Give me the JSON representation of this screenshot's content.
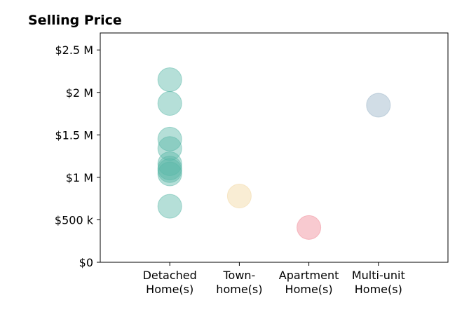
{
  "chart_data": {
    "type": "scatter",
    "title": "Selling Price",
    "xlabel": "",
    "ylabel": "",
    "categories": [
      [
        "Detached",
        "Home(s)"
      ],
      [
        "Town-",
        "home(s)"
      ],
      [
        "Apartment",
        "Home(s)"
      ],
      [
        "Multi-unit",
        "Home(s)"
      ]
    ],
    "ylim": [
      0,
      2700000
    ],
    "yticks": [
      {
        "value": 0,
        "label": "$0"
      },
      {
        "value": 500000,
        "label": "$500 k"
      },
      {
        "value": 1000000,
        "label": "$1 M"
      },
      {
        "value": 1500000,
        "label": "$1.5 M"
      },
      {
        "value": 2000000,
        "label": "$2 M"
      },
      {
        "value": 2500000,
        "label": "$2.5 M"
      }
    ],
    "grid": false,
    "series": [
      {
        "category_index": 0,
        "color": "#5ab8a8",
        "values": [
          2150000,
          1870000,
          1450000,
          1340000,
          1160000,
          1110000,
          1080000,
          1040000,
          660000
        ]
      },
      {
        "category_index": 1,
        "color": "#f2d6a0",
        "values": [
          780000
        ]
      },
      {
        "category_index": 2,
        "color": "#f08a96",
        "values": [
          410000
        ]
      },
      {
        "category_index": 3,
        "color": "#9ab3c8",
        "values": [
          1850000
        ]
      }
    ],
    "marker_opacity": 0.45
  }
}
